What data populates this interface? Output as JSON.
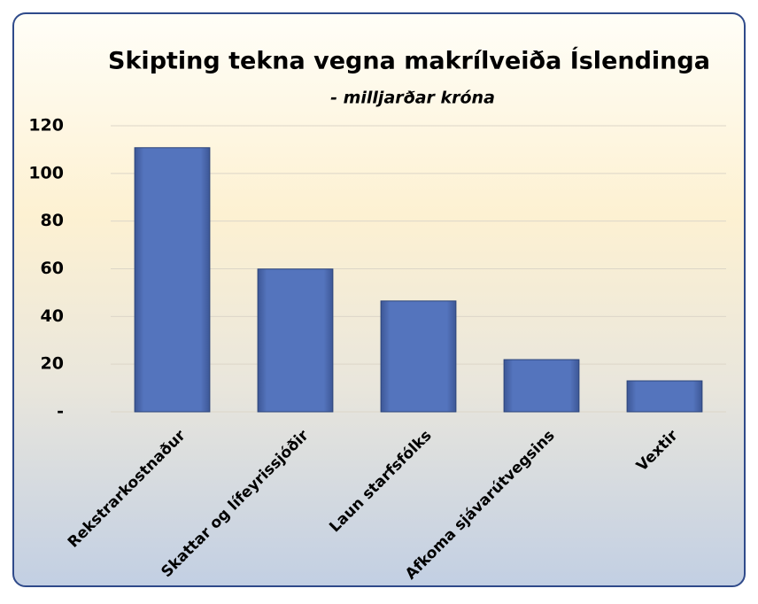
{
  "chart_data": {
    "type": "bar",
    "title": "Skipting tekna vegna makrílveiða Íslendinga",
    "subtitle": "- milljarðar króna",
    "categories": [
      "Rekstrarkostnaður",
      "Skattar og lífeyrissjóðir",
      "Laun starfsfólks",
      "Afkoma sjávarútvegsins",
      "Vextir"
    ],
    "values": [
      110.8,
      59.9,
      46.5,
      21.9,
      13
    ],
    "color": "#4a67ad",
    "ylim": [
      0,
      120
    ],
    "yticks": [
      {
        "value": 0,
        "label": "-"
      },
      20,
      40,
      60,
      80,
      100,
      120
    ],
    "grid": true
  }
}
